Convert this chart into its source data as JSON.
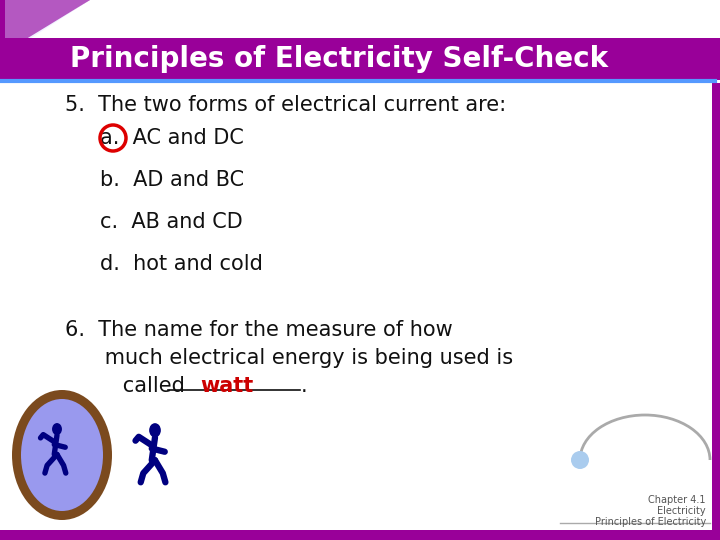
{
  "title": "Principles of Electricity Self-Check",
  "title_bg": "#990099",
  "title_color": "#ffffff",
  "slide_bg": "#ffffff",
  "accent_color": "#5599ff",
  "q5_text": "5.  The two forms of electrical current are:",
  "q5_options": [
    "a.  AC and DC",
    "b.  AD and BC",
    "c.  AB and CD",
    "d.  hot and cold"
  ],
  "q5_answer_index": 0,
  "q6_line1": "6.  The name for the measure of how",
  "q6_line2": "      much electrical energy is being used is",
  "q6_line3_pre": "      called",
  "q6_answer": "watt",
  "q6_answer_color": "#cc0000",
  "footer_line1": "Chapter 4.1",
  "footer_line2": "Electricity",
  "footer_line3": "Principles of Electricity",
  "footer_color": "#555555",
  "body_text_color": "#111111",
  "body_fontsize": 15,
  "title_fontsize": 20,
  "mirror_brown": "#7B4A1E",
  "mirror_blue": "#9999ee",
  "figure_color": "#000080",
  "arc_color": "#aaaaaa",
  "ball_color": "#aaccee"
}
